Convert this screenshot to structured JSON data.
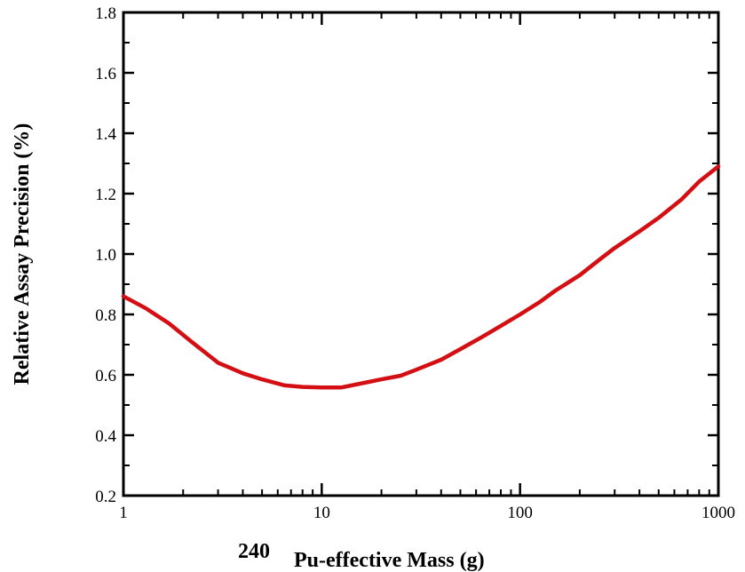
{
  "chart_data": {
    "type": "line",
    "xlabel_prefix": "240",
    "xlabel": "Pu-effective Mass (g)",
    "ylabel": "Relative Assay Precision (%)",
    "xscale": "log",
    "xlim": [
      1,
      1000
    ],
    "ylim": [
      0.2,
      1.8
    ],
    "xticks": [
      1,
      10,
      100,
      1000
    ],
    "xtick_labels": [
      "1",
      "10",
      "100",
      "1000"
    ],
    "yticks": [
      0.2,
      0.4,
      0.6,
      0.8,
      1.0,
      1.2,
      1.4,
      1.6,
      1.8
    ],
    "ytick_labels": [
      "0.2",
      "0.4",
      "0.6",
      "0.8",
      "1.0",
      "1.2",
      "1.4",
      "1.6",
      "1.8"
    ],
    "grid": false,
    "line_color": "#d40f14",
    "series": [
      {
        "x": [
          1,
          1.3,
          1.7,
          2.2,
          3,
          4,
          5,
          6.5,
          8,
          10,
          12.5,
          16,
          20,
          25,
          30,
          40,
          50,
          65,
          80,
          100,
          125,
          150,
          200,
          250,
          300,
          400,
          500,
          650,
          800,
          1000
        ],
        "y": [
          0.86,
          0.82,
          0.77,
          0.71,
          0.64,
          0.605,
          0.585,
          0.565,
          0.56,
          0.558,
          0.558,
          0.572,
          0.585,
          0.597,
          0.617,
          0.65,
          0.685,
          0.727,
          0.762,
          0.8,
          0.84,
          0.878,
          0.93,
          0.98,
          1.02,
          1.075,
          1.12,
          1.18,
          1.24,
          1.29
        ]
      }
    ]
  }
}
